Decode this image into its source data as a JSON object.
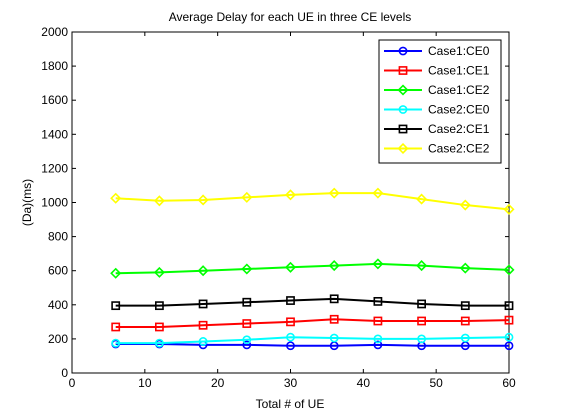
{
  "chart_data": {
    "type": "line",
    "title": "Average Delay for each UE in three CE levels",
    "xlabel": "Total # of UE",
    "ylabel": "(Da)(ms)",
    "xlim": [
      0,
      60
    ],
    "ylim": [
      0,
      2000
    ],
    "xticks": [
      0,
      10,
      20,
      30,
      40,
      50,
      60
    ],
    "yticks": [
      0,
      200,
      400,
      600,
      800,
      1000,
      1200,
      1400,
      1600,
      1800,
      2000
    ],
    "x": [
      6,
      12,
      18,
      24,
      30,
      36,
      42,
      48,
      54,
      60
    ],
    "grid": false,
    "legend_position": "top-right",
    "series": [
      {
        "name": "Case1:CE0",
        "color": "#0000ff",
        "marker": "circle",
        "values": [
          170,
          170,
          165,
          165,
          160,
          160,
          165,
          160,
          160,
          160
        ]
      },
      {
        "name": "Case1:CE1",
        "color": "#ff0000",
        "marker": "square",
        "values": [
          270,
          270,
          280,
          290,
          300,
          315,
          305,
          305,
          305,
          310
        ]
      },
      {
        "name": "Case1:CE2",
        "color": "#00ff00",
        "marker": "diamond",
        "values": [
          585,
          590,
          600,
          610,
          620,
          630,
          640,
          630,
          615,
          605
        ]
      },
      {
        "name": "Case2:CE0",
        "color": "#00ffff",
        "marker": "circle",
        "values": [
          175,
          175,
          185,
          195,
          210,
          205,
          200,
          200,
          205,
          210
        ]
      },
      {
        "name": "Case2:CE1",
        "color": "#000000",
        "marker": "square",
        "values": [
          395,
          395,
          405,
          415,
          425,
          435,
          420,
          405,
          395,
          395
        ]
      },
      {
        "name": "Case2:CE2",
        "color": "#ffff00",
        "marker": "diamond",
        "values": [
          1025,
          1010,
          1015,
          1030,
          1045,
          1055,
          1055,
          1020,
          985,
          960
        ]
      }
    ]
  }
}
